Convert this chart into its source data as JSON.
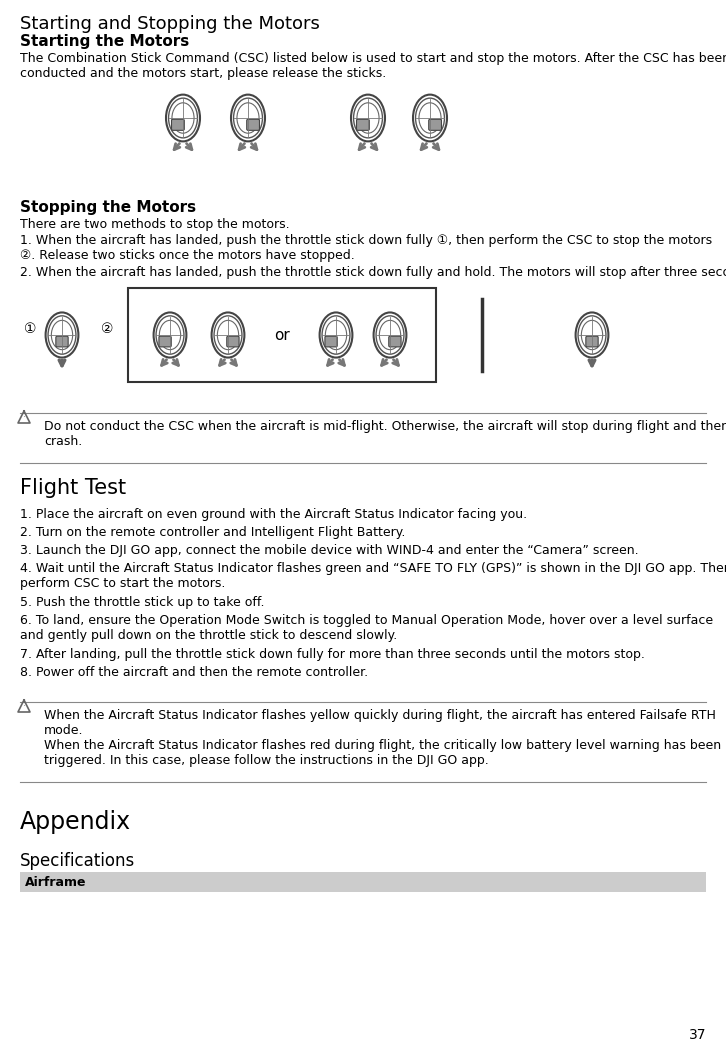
{
  "page_number": "37",
  "title": "Starting and Stopping the Motors",
  "section1_title": "Starting the Motors",
  "section1_body": "The Combination Stick Command (CSC) listed below is used to start and stop the motors. After the CSC has been\nconducted and the motors start, please release the sticks.",
  "section2_title": "Stopping the Motors",
  "section2_body1": "There are two methods to stop the motors.",
  "section2_body2": "1. When the aircraft has landed, push the throttle stick down fully ①, then perform the CSC to stop the motors\n②. Release two sticks once the motors have stopped.",
  "section2_body3": "2. When the aircraft has landed, push the throttle stick down fully and hold. The motors will stop after three seconds.",
  "warning1": "Do not conduct the CSC when the aircraft is mid-flight. Otherwise, the aircraft will stop during flight and then\ncrash.",
  "section3_title": "Flight Test",
  "flight_steps": [
    "1. Place the aircraft on even ground with the Aircraft Status Indicator facing you.",
    "2. Turn on the remote controller and Intelligent Flight Battery.",
    "3. Launch the DJI GO app, connect the mobile device with WIND-4 and enter the “Camera” screen.",
    "4. Wait until the Aircraft Status Indicator flashes green and “SAFE TO FLY (GPS)” is shown in the DJI GO app. Then\nperform CSC to start the motors.",
    "5. Push the throttle stick up to take off.",
    "6. To land, ensure the Operation Mode Switch is toggled to Manual Operation Mode, hover over a level surface\nand gently pull down on the throttle stick to descend slowly.",
    "7. After landing, pull the throttle stick down fully for more than three seconds until the motors stop.",
    "8. Power off the aircraft and then the remote controller."
  ],
  "warning2": "When the Aircraft Status Indicator flashes yellow quickly during flight, the aircraft has entered Failsafe RTH\nmode.\nWhen the Aircraft Status Indicator flashes red during flight, the critically low battery level warning has been\ntriggered. In this case, please follow the instructions in the DJI GO app.",
  "appendix_title": "Appendix",
  "specs_title": "Specifications",
  "specs_row": "Airframe",
  "bg_color": "#ffffff",
  "text_color": "#000000"
}
